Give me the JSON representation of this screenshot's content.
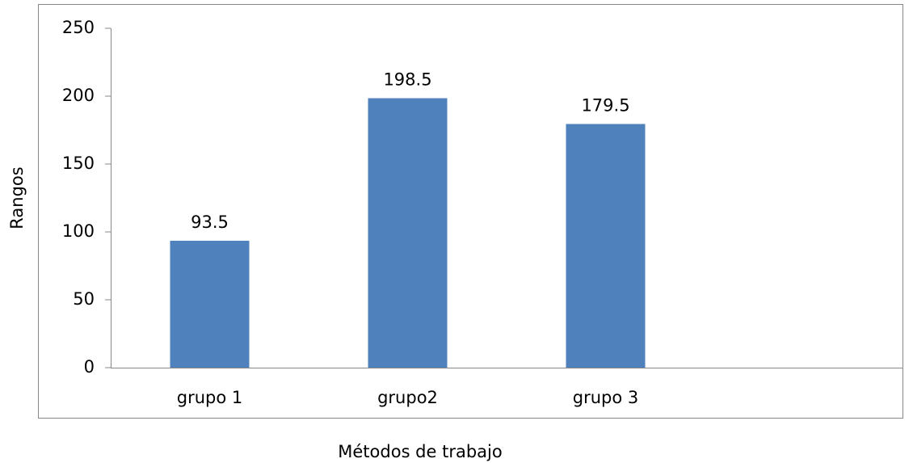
{
  "chart_data": {
    "type": "bar",
    "categories": [
      "grupo 1",
      "grupo2",
      "grupo 3",
      null
    ],
    "values": [
      93.5,
      198.5,
      179.5,
      null
    ],
    "color": "#4f81bd",
    "xlabel": "Métodos de trabajo",
    "ylabel": "Rangos",
    "ylim": [
      0,
      250
    ],
    "yticks": [
      0,
      50,
      100,
      150,
      200,
      250
    ],
    "grid": false
  }
}
